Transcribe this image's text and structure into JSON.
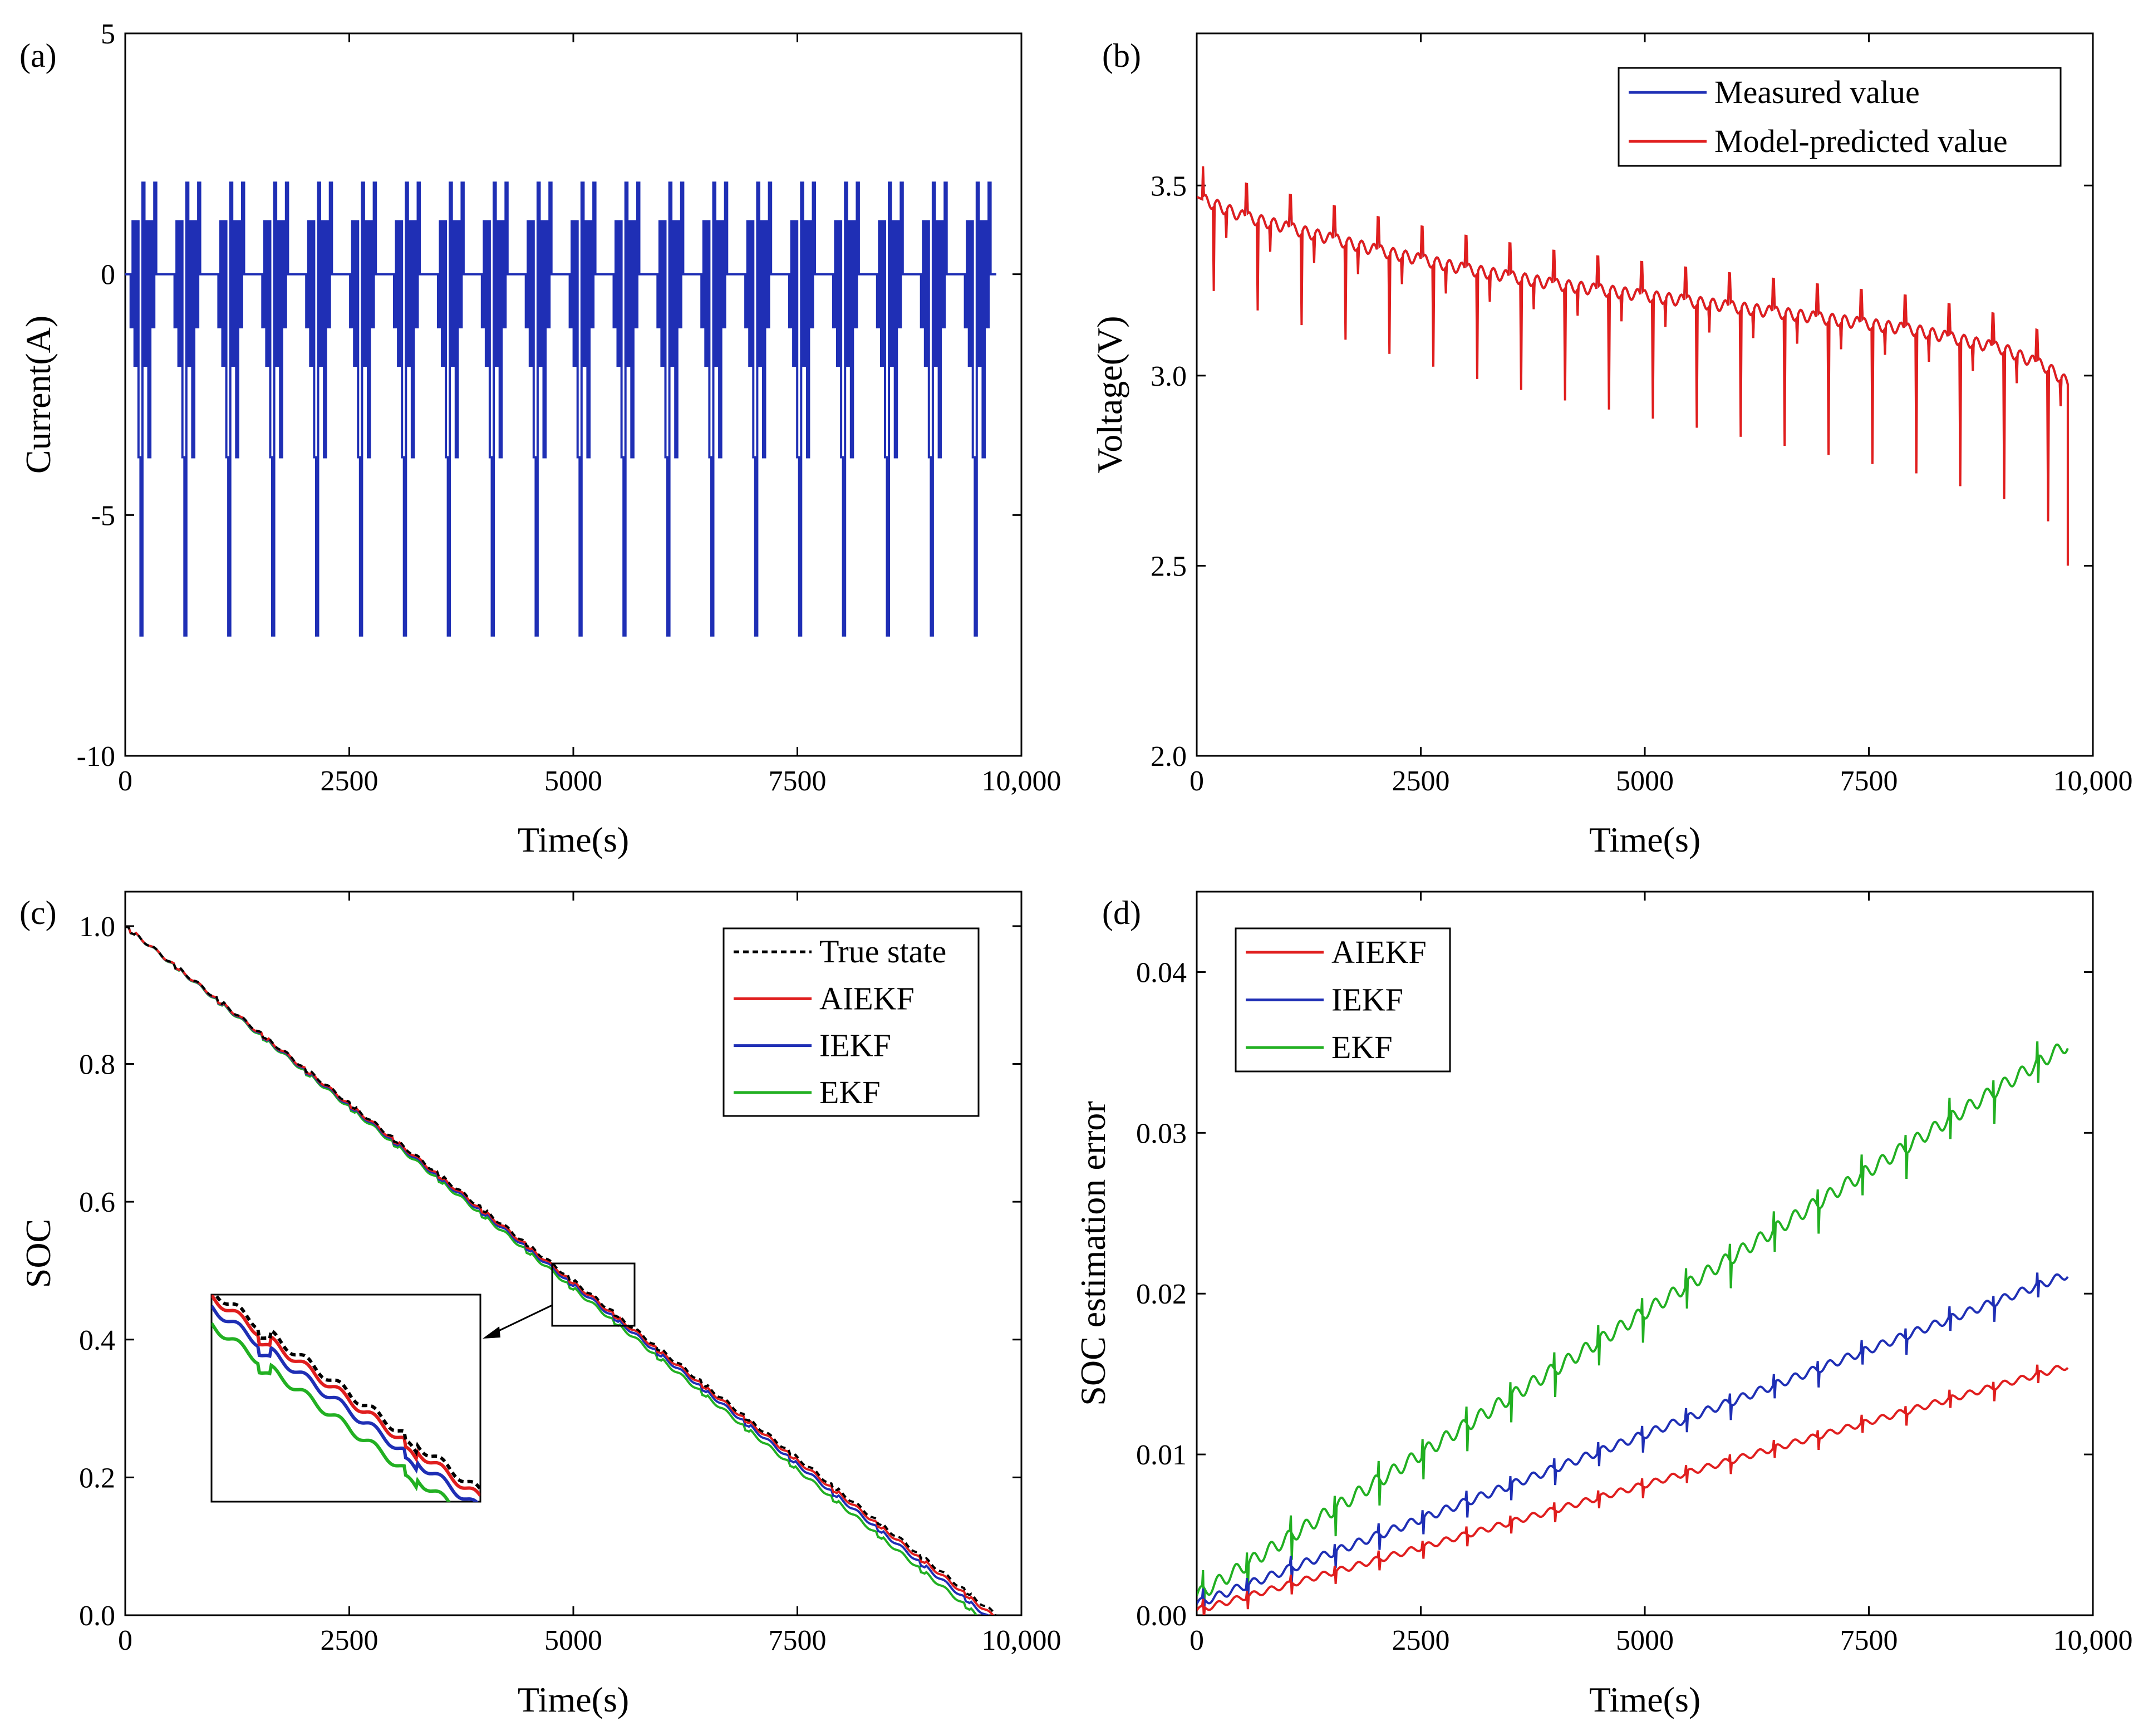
{
  "chart_data": [
    {
      "id": "a",
      "panel_label": "(a)",
      "type": "line",
      "title": "",
      "xlabel": "Time(s)",
      "ylabel": "Current(A)",
      "xlim": [
        0,
        10000
      ],
      "ylim": [
        -10,
        5
      ],
      "xticks": [
        0,
        2500,
        5000,
        7500,
        10000
      ],
      "xtick_labels": [
        "0",
        "2500",
        "5000",
        "7500",
        "10,000"
      ],
      "yticks": [
        -10,
        -5,
        0,
        5
      ],
      "ytick_labels": [
        "-10",
        "-5",
        "0",
        "5"
      ],
      "grid": false,
      "legend": null,
      "series": [
        {
          "name": "Current",
          "color": "#1f2fb5",
          "pulse_profile": {
            "cycle_count": 20,
            "first_cycle_start_s": 60,
            "cycle_period_s": 490,
            "end_time_s": 9720,
            "levels_a": [
              -1.1,
              1.1,
              -1.9,
              1.1,
              -3.8,
              -7.5,
              1.9,
              -1.9,
              1.1,
              -3.8,
              1.1,
              -1.1,
              1.9,
              0
            ]
          }
        }
      ]
    },
    {
      "id": "b",
      "panel_label": "(b)",
      "type": "line",
      "title": "",
      "xlabel": "Time(s)",
      "ylabel": "Voltage(V)",
      "xlim": [
        0,
        10000
      ],
      "ylim": [
        2.0,
        3.9
      ],
      "xticks": [
        0,
        2500,
        5000,
        7500,
        10000
      ],
      "xtick_labels": [
        "0",
        "2500",
        "5000",
        "7500",
        "10,000"
      ],
      "yticks": [
        2.0,
        2.5,
        3.0,
        3.5
      ],
      "ytick_labels": [
        "2.0",
        "2.5",
        "3.0",
        "3.5"
      ],
      "grid": false,
      "legend": {
        "position": "top-right",
        "entries": [
          "Measured value",
          "Model-predicted value"
        ]
      },
      "series": [
        {
          "name": "Measured value",
          "color": "#1f2fb5",
          "x": [
            0,
            500,
            1000,
            2000,
            3000,
            4000,
            5000,
            6000,
            7000,
            8000,
            9000,
            9500,
            9720
          ],
          "baseline_v": [
            3.47,
            3.42,
            3.39,
            3.33,
            3.28,
            3.24,
            3.21,
            3.18,
            3.15,
            3.12,
            3.07,
            3.02,
            2.98
          ]
        },
        {
          "name": "Model-predicted value",
          "color": "#e01e1e",
          "x": [
            0,
            500,
            1000,
            2000,
            3000,
            4000,
            5000,
            6000,
            7000,
            8000,
            9000,
            9500,
            9720
          ],
          "baseline_v": [
            3.47,
            3.42,
            3.39,
            3.33,
            3.28,
            3.24,
            3.21,
            3.18,
            3.15,
            3.12,
            3.07,
            3.02,
            2.98
          ],
          "end_drop_v": 2.5
        }
      ]
    },
    {
      "id": "c",
      "panel_label": "(c)",
      "type": "line",
      "title": "",
      "xlabel": "Time(s)",
      "ylabel": "SOC",
      "xlim": [
        0,
        10000
      ],
      "ylim": [
        0.0,
        1.05
      ],
      "xticks": [
        0,
        2500,
        5000,
        7500,
        10000
      ],
      "xtick_labels": [
        "0",
        "2500",
        "5000",
        "7500",
        "10,000"
      ],
      "yticks": [
        0.0,
        0.2,
        0.4,
        0.6,
        0.8,
        1.0
      ],
      "ytick_labels": [
        "0.0",
        "0.2",
        "0.4",
        "0.6",
        "0.8",
        "1.0"
      ],
      "grid": false,
      "legend": {
        "position": "top-right",
        "entries": [
          "True state",
          "AIEKF",
          "IEKF",
          "EKF"
        ]
      },
      "inset": {
        "description": "zoom of region around t=5000 s",
        "x_range": [
          4800,
          5700
        ],
        "y_range": [
          0.415,
          0.51
        ]
      },
      "series": [
        {
          "name": "True state",
          "color": "#000000",
          "style": "dashed",
          "x": [
            0,
            9720
          ],
          "y": [
            1.0,
            0.0
          ],
          "offset": 0.0
        },
        {
          "name": "AIEKF",
          "color": "#e01e1e",
          "style": "solid",
          "x": [
            0,
            9720
          ],
          "y": [
            1.0,
            0.0
          ],
          "offset": -0.005
        },
        {
          "name": "IEKF",
          "color": "#1f2fb5",
          "style": "solid",
          "x": [
            0,
            9720
          ],
          "y": [
            1.0,
            0.0
          ],
          "offset": -0.012
        },
        {
          "name": "EKF",
          "color": "#22b022",
          "style": "solid",
          "x": [
            0,
            9720
          ],
          "y": [
            1.0,
            0.0
          ],
          "offset": -0.022
        }
      ]
    },
    {
      "id": "d",
      "panel_label": "(d)",
      "type": "line",
      "title": "",
      "xlabel": "Time(s)",
      "ylabel": "SOC estimation error",
      "xlim": [
        0,
        10000
      ],
      "ylim": [
        0.0,
        0.045
      ],
      "xticks": [
        0,
        2500,
        5000,
        7500,
        10000
      ],
      "xtick_labels": [
        "0",
        "2500",
        "5000",
        "7500",
        "10,000"
      ],
      "yticks": [
        0.0,
        0.01,
        0.02,
        0.03,
        0.04
      ],
      "ytick_labels": [
        "0.00",
        "0.01",
        "0.02",
        "0.03",
        "0.04"
      ],
      "grid": false,
      "legend": {
        "position": "top-left",
        "entries": [
          "AIEKF",
          "IEKF",
          "EKF"
        ]
      },
      "series": [
        {
          "name": "AIEKF",
          "color": "#e01e1e",
          "x": [
            0,
            9720
          ],
          "y": [
            0.0003,
            0.0155
          ]
        },
        {
          "name": "IEKF",
          "color": "#1f2fb5",
          "x": [
            0,
            9720
          ],
          "y": [
            0.0007,
            0.0212
          ]
        },
        {
          "name": "EKF",
          "color": "#22b022",
          "x": [
            0,
            9720
          ],
          "y": [
            0.0012,
            0.0355
          ]
        }
      ]
    }
  ]
}
